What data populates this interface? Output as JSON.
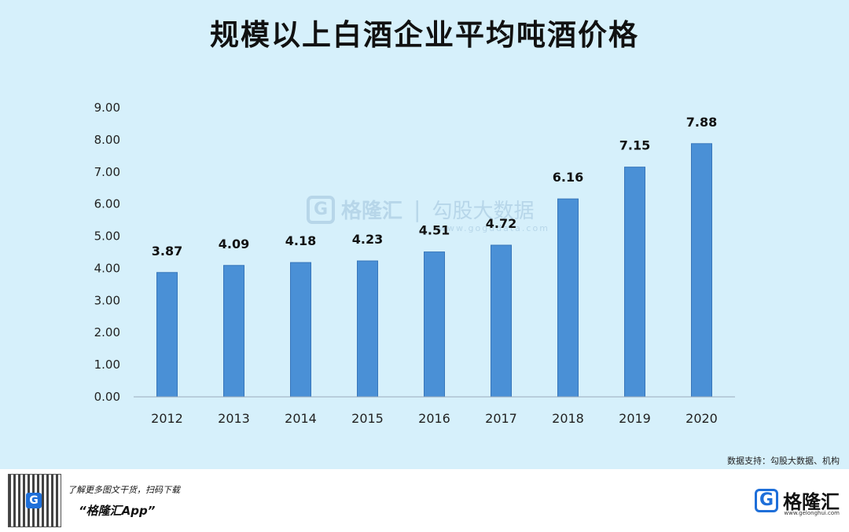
{
  "title": "规模以上白酒企业平均吨酒价格",
  "source_note": "数据支持：勾股大数据、机构",
  "watermark": {
    "brand": "格隆汇",
    "product": "勾股大数据",
    "url": "www.gogudata.com"
  },
  "footer": {
    "promo_line": "了解更多图文干货，扫码下载",
    "app_name": "“格隆汇App”",
    "brand_name": "格隆汇",
    "brand_url": "www.gelonghui.com"
  },
  "chart_data": {
    "type": "bar",
    "categories": [
      "2012",
      "2013",
      "2014",
      "2015",
      "2016",
      "2017",
      "2018",
      "2019",
      "2020"
    ],
    "values": [
      3.87,
      4.09,
      4.18,
      4.23,
      4.51,
      4.72,
      6.16,
      7.15,
      7.88
    ],
    "value_labels": [
      "3.87",
      "4.09",
      "4.18",
      "4.23",
      "4.51",
      "4.72",
      "6.16",
      "7.15",
      "7.88"
    ],
    "y_ticks": [
      "0.00",
      "1.00",
      "2.00",
      "3.00",
      "4.00",
      "5.00",
      "6.00",
      "7.00",
      "8.00",
      "9.00"
    ],
    "ylim": [
      0,
      9
    ],
    "grid": false,
    "bar_color": "#4a90d6"
  }
}
